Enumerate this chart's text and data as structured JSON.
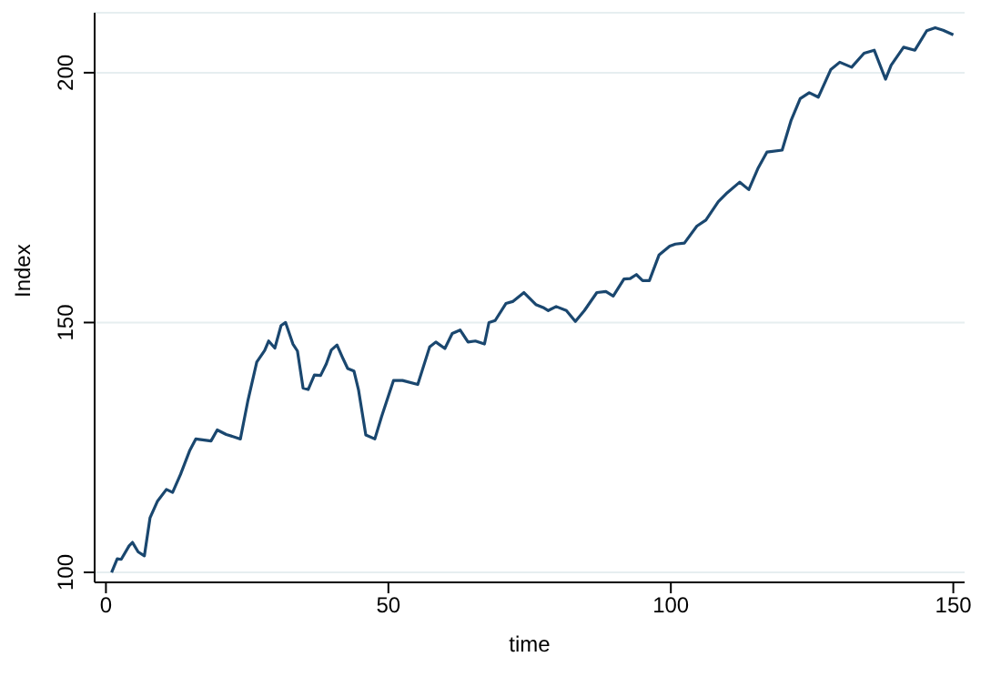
{
  "chart_data": {
    "type": "line",
    "xlabel": "time",
    "ylabel": "Index",
    "x": [
      1,
      2,
      2.7,
      4.1,
      4.7,
      5.7,
      6.8,
      7.8,
      9.1,
      10.7,
      11.8,
      13.2,
      14.8,
      15.9,
      18.6,
      19.7,
      21.3,
      23.8,
      25.1,
      26.7,
      28.1,
      28.8,
      29.9,
      31,
      31.8,
      33.1,
      33.9,
      34.9,
      35.8,
      36.9,
      38,
      39,
      39.9,
      40.9,
      42,
      42.8,
      43.9,
      44.7,
      46,
      47.6,
      48.8,
      50.9,
      52.5,
      55.2,
      57.3,
      58.4,
      60,
      61.3,
      62.7,
      64.1,
      65.4,
      67,
      67.8,
      68.9,
      70.8,
      72,
      74,
      76.1,
      77.4,
      78.3,
      79.7,
      81.5,
      83.1,
      84.7,
      86.9,
      88.5,
      89.8,
      91.7,
      92.8,
      93.9,
      95,
      96.2,
      97.9,
      99.8,
      100.8,
      102.4,
      104.6,
      106.2,
      108.4,
      110,
      112.2,
      113.8,
      115.4,
      117,
      119.7,
      121.3,
      122.9,
      124.5,
      126.1,
      128.3,
      129.9,
      132,
      134.2,
      136,
      138,
      139,
      141.2,
      143.2,
      145.3,
      146.8,
      148.2,
      150
    ],
    "series": [
      {
        "color": "#1a476f",
        "values": [
          100,
          102.7,
          102.6,
          105.3,
          106,
          104.1,
          103.3,
          110.9,
          114.2,
          116.6,
          116,
          119.6,
          124.3,
          126.7,
          126.3,
          128.5,
          127.6,
          126.7,
          134.2,
          142.1,
          144.4,
          146.3,
          144.9,
          149.4,
          150,
          145.7,
          144.3,
          136.9,
          136.6,
          139.5,
          139.4,
          141.7,
          144.5,
          145.5,
          142.7,
          140.8,
          140.3,
          136.6,
          127.5,
          126.7,
          131.2,
          138.4,
          138.4,
          137.6,
          145.1,
          146.1,
          144.8,
          147.8,
          148.5,
          146.1,
          146.3,
          145.7,
          150,
          150.4,
          153.8,
          154.2,
          156,
          153.6,
          153,
          152.4,
          153.2,
          152.4,
          150.2,
          152.4,
          156,
          156.2,
          155.3,
          158.7,
          158.8,
          159.6,
          158.4,
          158.4,
          163.5,
          165.3,
          165.7,
          165.9,
          169.3,
          170.5,
          174.2,
          176,
          178.1,
          176.6,
          180.8,
          184.1,
          184.5,
          190.5,
          194.8,
          196,
          195.1,
          200.6,
          202.1,
          201.1,
          203.9,
          204.5,
          198.7,
          201.5,
          205.1,
          204.5,
          208.4,
          209,
          208.5,
          207.6
        ]
      }
    ],
    "xlim": [
      -2,
      152
    ],
    "ylim": [
      98,
      212
    ],
    "xticks": [
      0,
      50,
      100,
      150
    ],
    "yticks": [
      100,
      150,
      200
    ],
    "grid": "y",
    "legend": false,
    "marker": "none",
    "line_style": "solid"
  }
}
